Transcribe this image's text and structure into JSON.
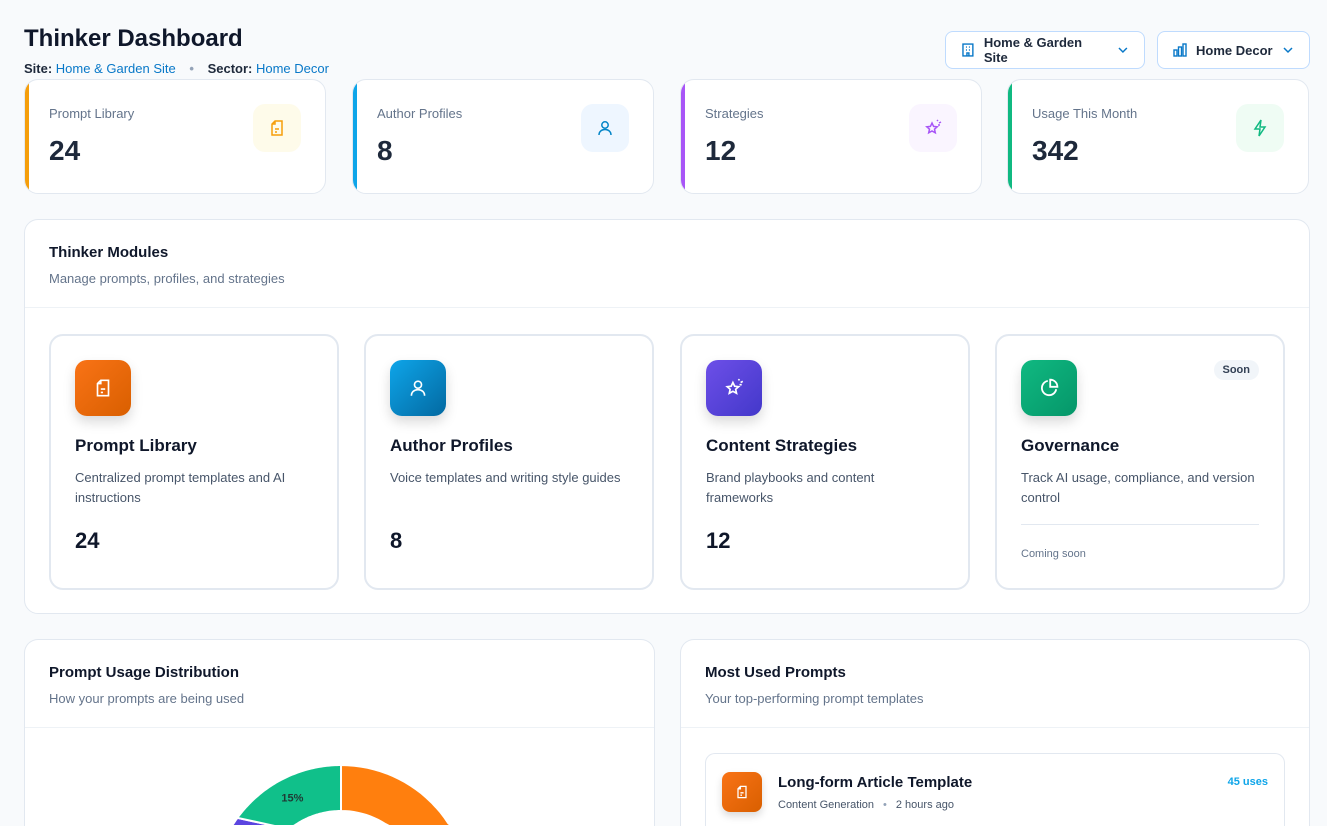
{
  "header": {
    "title": "Thinker Dashboard",
    "site_label": "Site:",
    "site_value": "Home & Garden Site",
    "sector_label": "Sector:",
    "sector_value": "Home Decor"
  },
  "selectors": {
    "site": "Home & Garden Site",
    "sector": "Home Decor"
  },
  "stats": [
    {
      "label": "Prompt Library",
      "value": "24",
      "color": "#f59e0b",
      "icon": "file-text-icon"
    },
    {
      "label": "Author Profiles",
      "value": "8",
      "color": "#0ea5e9",
      "icon": "user-icon"
    },
    {
      "label": "Strategies",
      "value": "12",
      "color": "#a855f7",
      "icon": "sparkle-star-icon"
    },
    {
      "label": "Usage This Month",
      "value": "342",
      "color": "#10b981",
      "icon": "bolt-icon"
    }
  ],
  "modules": {
    "title": "Thinker Modules",
    "subtitle": "Manage prompts, profiles, and strategies",
    "items": [
      {
        "title": "Prompt Library",
        "desc": "Centralized prompt templates and AI instructions",
        "count": "24",
        "color": "#ea6c00",
        "icon": "file-text-icon"
      },
      {
        "title": "Author Profiles",
        "desc": "Voice templates and writing style guides",
        "count": "8",
        "color": "#0284c7",
        "icon": "user-icon"
      },
      {
        "title": "Content Strategies",
        "desc": "Brand playbooks and content frameworks",
        "count": "12",
        "color": "#4f46e5",
        "icon": "sparkle-star-icon"
      },
      {
        "title": "Governance",
        "desc": "Track AI usage, compliance, and version control",
        "badge": "Soon",
        "footer": "Coming soon",
        "color": "#10b981",
        "icon": "pie-chart-icon"
      }
    ]
  },
  "usage": {
    "title": "Prompt Usage Distribution",
    "subtitle": "How your prompts are being used"
  },
  "chart_data": {
    "type": "pie",
    "donut": true,
    "slices": [
      {
        "value": null,
        "color": "#ff7f0e"
      },
      {
        "value": null,
        "color": "#5b45e0"
      },
      {
        "value": 15,
        "label": "15%",
        "color": "#10c08a"
      }
    ]
  },
  "top_prompts": {
    "title": "Most Used Prompts",
    "subtitle": "Your top-performing prompt templates",
    "items": [
      {
        "name": "Long-form Article Template",
        "category": "Content Generation",
        "time": "2 hours ago",
        "uses": "45 uses"
      }
    ]
  }
}
